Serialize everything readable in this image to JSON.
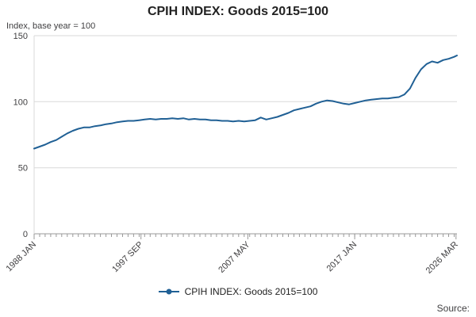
{
  "colors": {
    "line": "#206095",
    "axis": "#999999",
    "grid": "#d9d9d9",
    "text": "#414042"
  },
  "footer": {
    "source_label": "Source:"
  },
  "chart_data": {
    "type": "line",
    "title": "CPIH INDEX: Goods 2015=100",
    "ylabel": "Index, base year = 100",
    "xlabel": "",
    "xlim": [
      1988.0,
      2026.25
    ],
    "ylim": [
      0,
      150
    ],
    "y_ticks": [
      0,
      50,
      100,
      150
    ],
    "x_ticks": [
      {
        "pos": 1988.0,
        "label": "1988 JAN"
      },
      {
        "pos": 1997.667,
        "label": "1997 SEP"
      },
      {
        "pos": 2007.333,
        "label": "2007 MAY"
      },
      {
        "pos": 2017.0,
        "label": "2017 JAN"
      },
      {
        "pos": 2026.167,
        "label": "2026 MAR"
      }
    ],
    "minor_x_tick_interval": 0.5,
    "grid": true,
    "legend_position": "bottom",
    "series": [
      {
        "name": "CPIH INDEX: Goods 2015=100",
        "color": "#206095",
        "x": [
          1988,
          1988.5,
          1989,
          1989.5,
          1990,
          1990.5,
          1991,
          1991.5,
          1992,
          1992.5,
          1993,
          1993.5,
          1994,
          1994.5,
          1995,
          1995.5,
          1996,
          1996.5,
          1997,
          1997.5,
          1998,
          1998.5,
          1999,
          1999.5,
          2000,
          2000.5,
          2001,
          2001.5,
          2002,
          2002.5,
          2003,
          2003.5,
          2004,
          2004.5,
          2005,
          2005.5,
          2006,
          2006.5,
          2007,
          2007.5,
          2008,
          2008.5,
          2009,
          2009.5,
          2010,
          2010.5,
          2011,
          2011.5,
          2012,
          2012.5,
          2013,
          2013.5,
          2014,
          2014.5,
          2015,
          2015.5,
          2016,
          2016.5,
          2017,
          2017.5,
          2018,
          2018.5,
          2019,
          2019.5,
          2020,
          2020.5,
          2021,
          2021.5,
          2022,
          2022.5,
          2023,
          2023.5,
          2024,
          2024.5,
          2025,
          2025.5,
          2026,
          2026.25
        ],
        "y": [
          64.5,
          66,
          67.5,
          69.5,
          71,
          73.5,
          76,
          78,
          79.5,
          80.5,
          80.5,
          81.5,
          82,
          83,
          83.5,
          84.5,
          85,
          85.5,
          85.5,
          86,
          86.5,
          87,
          86.5,
          87,
          87,
          87.5,
          87,
          87.5,
          86.5,
          87,
          86.5,
          86.5,
          86,
          86,
          85.5,
          85.5,
          85,
          85.5,
          85,
          85.5,
          86,
          88,
          86.5,
          87.5,
          88.5,
          90,
          91.5,
          93.5,
          94.5,
          95.5,
          96.5,
          98.5,
          100,
          101,
          100.5,
          99.5,
          98.5,
          98,
          99,
          100,
          101,
          101.5,
          102,
          102.5,
          102.5,
          103,
          103.5,
          105.5,
          110,
          118,
          124.5,
          128.5,
          130.5,
          129.5,
          131.5,
          132.5,
          134,
          135
        ]
      }
    ]
  }
}
